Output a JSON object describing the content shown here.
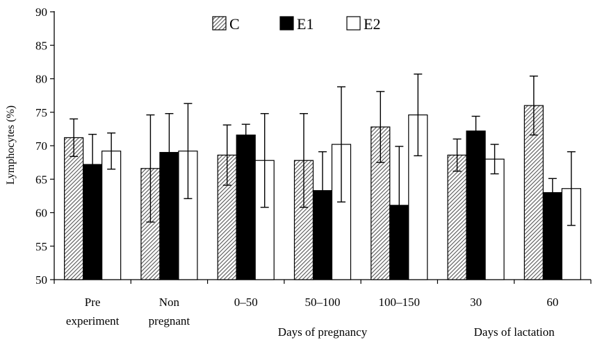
{
  "chart_data": {
    "type": "bar",
    "ylabel": "Lymphocytes (%)",
    "xlabel": "",
    "ylim": [
      50,
      90
    ],
    "yticks": [
      50,
      55,
      60,
      65,
      70,
      75,
      80,
      85,
      90
    ],
    "grid": false,
    "legend_position": "top-center",
    "categories": [
      [
        "Pre",
        "experiment"
      ],
      [
        "Non",
        "pregnant"
      ],
      [
        "0–50"
      ],
      [
        "50–100"
      ],
      [
        "100–150"
      ],
      [
        "30"
      ],
      [
        "60"
      ]
    ],
    "group_labels": [
      {
        "label": "Days of pregnancy",
        "from": 2,
        "to": 4
      },
      {
        "label": "Days of lactation",
        "from": 5,
        "to": 6
      }
    ],
    "series": [
      {
        "name": "C",
        "style": "hatched",
        "color": "#555555",
        "values": [
          71.2,
          66.6,
          68.6,
          67.8,
          72.8,
          68.6,
          76.0
        ],
        "errors": [
          2.8,
          8.0,
          4.5,
          7.0,
          5.3,
          2.4,
          4.4
        ]
      },
      {
        "name": "E1",
        "style": "solid",
        "color": "#000000",
        "values": [
          67.2,
          69.0,
          71.6,
          63.3,
          61.1,
          72.2,
          63.0
        ],
        "errors": [
          4.5,
          5.8,
          1.6,
          5.8,
          8.8,
          2.2,
          2.1
        ]
      },
      {
        "name": "E2",
        "style": "open",
        "color": "#ffffff",
        "values": [
          69.2,
          69.2,
          67.8,
          70.2,
          74.6,
          68.0,
          63.6
        ],
        "errors": [
          2.7,
          7.1,
          7.0,
          8.6,
          6.1,
          2.2,
          5.5
        ]
      }
    ]
  }
}
